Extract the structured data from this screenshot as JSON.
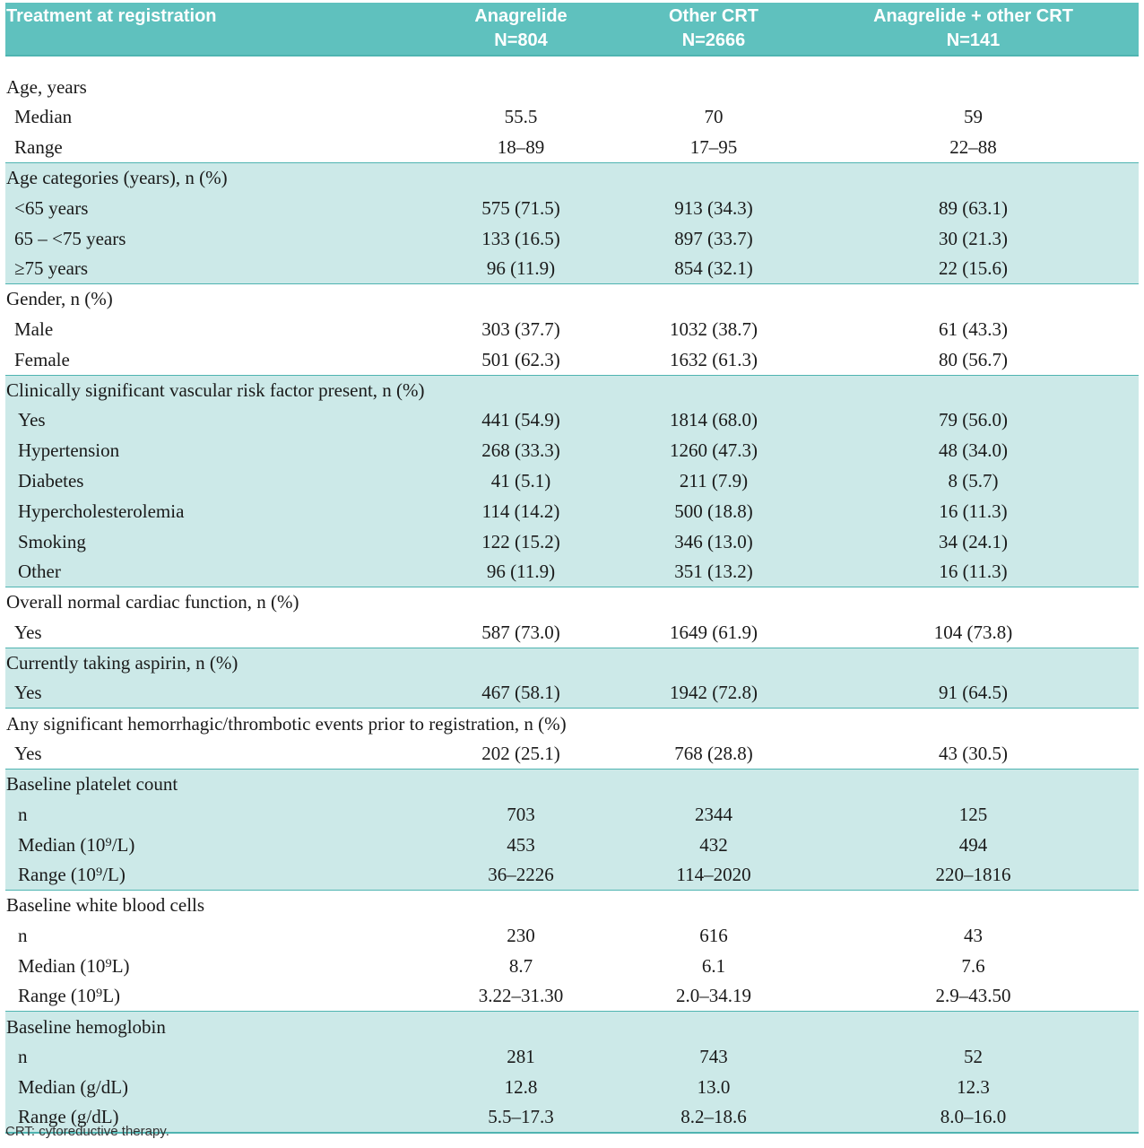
{
  "header": {
    "col0": "Treatment at registration",
    "col1_line1": "Anagrelide",
    "col1_line2": "N=804",
    "col2_line1": "Other CRT",
    "col2_line2": "N=2666",
    "col3_line1": "Anagrelide + other CRT",
    "col3_line2": "N=141"
  },
  "groups": [
    {
      "title": "Age, years",
      "shade": false,
      "rows": [
        {
          "label": "Median",
          "a": "55.5",
          "b": "70",
          "c": "59"
        },
        {
          "label": "Range",
          "a": "18–89",
          "b": "17–95",
          "c": "22–88"
        }
      ]
    },
    {
      "title": "Age categories (years), n (%)",
      "shade": true,
      "rows": [
        {
          "label": "<65 years",
          "a": "575 (71.5)",
          "b": "913 (34.3)",
          "c": "89 (63.1)"
        },
        {
          "label": "65 – <75 years",
          "a": "133 (16.5)",
          "b": "897 (33.7)",
          "c": "30 (21.3)"
        },
        {
          "label": "≥75 years",
          "a": "96 (11.9)",
          "b": "854 (32.1)",
          "c": "22 (15.6)"
        }
      ]
    },
    {
      "title": "Gender, n (%)",
      "shade": false,
      "rows": [
        {
          "label": "Male",
          "a": "303 (37.7)",
          "b": "1032 (38.7)",
          "c": "61 (43.3)"
        },
        {
          "label": "Female",
          "a": "501 (62.3)",
          "b": "1632 (61.3)",
          "c": "80 (56.7)"
        }
      ]
    },
    {
      "title": "Clinically significant vascular risk factor present, n (%)",
      "shade": true,
      "rows": [
        {
          "label": "Yes",
          "a": "441 (54.9)",
          "b": "1814 (68.0)",
          "c": "79 (56.0)"
        },
        {
          "label": "Hypertension",
          "a": "268 (33.3)",
          "b": "1260 (47.3)",
          "c": "48 (34.0)"
        },
        {
          "label": "Diabetes",
          "a": "41 (5.1)",
          "b": "211 (7.9)",
          "c": "8 (5.7)"
        },
        {
          "label": "Hypercholesterolemia",
          "a": "114 (14.2)",
          "b": "500 (18.8)",
          "c": "16 (11.3)"
        },
        {
          "label": "Smoking",
          "a": "122 (15.2)",
          "b": "346 (13.0)",
          "c": "34 (24.1)"
        },
        {
          "label": "Other",
          "a": "96 (11.9)",
          "b": "351 (13.2)",
          "c": "16 (11.3)"
        }
      ]
    },
    {
      "title": "Overall normal cardiac function, n (%)",
      "shade": false,
      "rows": [
        {
          "label": "Yes",
          "a": "587 (73.0)",
          "b": "1649 (61.9)",
          "c": "104 (73.8)"
        }
      ]
    },
    {
      "title": "Currently taking aspirin, n (%)",
      "shade": true,
      "rows": [
        {
          "label": "Yes",
          "a": "467 (58.1)",
          "b": "1942 (72.8)",
          "c": "91 (64.5)"
        }
      ]
    },
    {
      "title": "Any significant hemorrhagic/thrombotic events prior to registration, n (%)",
      "shade": false,
      "rows": [
        {
          "label": "Yes",
          "a": "202 (25.1)",
          "b": "768 (28.8)",
          "c": "43 (30.5)"
        }
      ]
    },
    {
      "title": "Baseline platelet count",
      "shade": true,
      "rows": [
        {
          "label": "n",
          "a": "703",
          "b": "2344",
          "c": "125"
        },
        {
          "label": "Median (10⁹/L)",
          "a": "453",
          "b": "432",
          "c": "494"
        },
        {
          "label": "Range (10⁹/L)",
          "a": "36–2226",
          "b": "114–2020",
          "c": "220–1816"
        }
      ]
    },
    {
      "title": "Baseline white blood cells",
      "shade": false,
      "rows": [
        {
          "label": "n",
          "a": "230",
          "b": "616",
          "c": "43"
        },
        {
          "label": "Median (10⁹L)",
          "a": "8.7",
          "b": "6.1",
          "c": "7.6"
        },
        {
          "label": "Range (10⁹L)",
          "a": "3.22–31.30",
          "b": "2.0–34.19",
          "c": "2.9–43.50"
        }
      ]
    },
    {
      "title": "Baseline hemoglobin",
      "shade": true,
      "rows": [
        {
          "label": "n",
          "a": "281",
          "b": "743",
          "c": "52"
        },
        {
          "label": "Median (g/dL)",
          "a": "12.8",
          "b": "13.0",
          "c": "12.3"
        },
        {
          "label": "Range (g/dL)",
          "a": "5.5–17.3",
          "b": "8.2–18.6",
          "c": "8.0–16.0"
        }
      ]
    }
  ],
  "footnote": "CRT: cytoreductive therapy."
}
